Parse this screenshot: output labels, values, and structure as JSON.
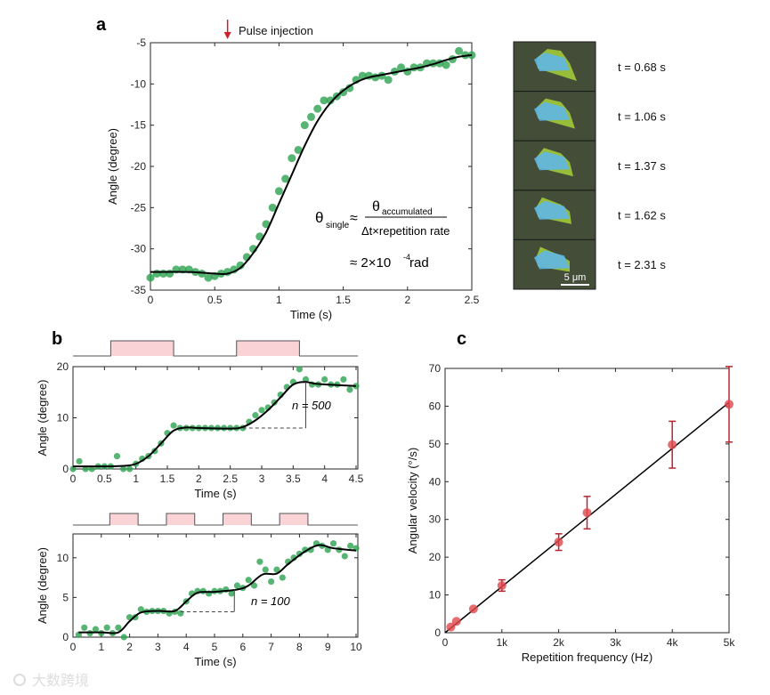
{
  "watermark": "大数跨境",
  "colors": {
    "green": "#2ca24f",
    "red": "#e0474c",
    "errorbar": "#b2282e",
    "pulse": "#f9d3d6"
  },
  "chart_data": [
    {
      "id": "a",
      "panel_label": "a",
      "type": "scatter",
      "xlabel": "Time (s)",
      "ylabel": "Angle (degree)",
      "xlim": [
        0,
        2.5
      ],
      "ylim": [
        -35,
        -5
      ],
      "xticks": [
        0,
        0.5,
        1,
        1.5,
        2,
        2.5
      ],
      "xtick_labels": [
        "0",
        "0.5",
        "1",
        "1.5",
        "2",
        "2.5"
      ],
      "yticks": [
        -35,
        -30,
        -25,
        -20,
        -15,
        -10,
        -5
      ],
      "ytick_labels": [
        "-35",
        "-30",
        "-25",
        "-20",
        "-15",
        "-10",
        "-5"
      ],
      "annotation_pulse": {
        "label": "Pulse injection",
        "t": 0.6
      },
      "formula": {
        "lhs": "θ",
        "lhs_sub": "single",
        "approx": "≈",
        "num": "θ",
        "num_sub": "accumulated",
        "den": "Δt×repetition rate",
        "result_pre": "≈ 2×10",
        "result_exp": "-4",
        "result_post": " rad"
      },
      "x": [
        0,
        0.05,
        0.1,
        0.15,
        0.2,
        0.25,
        0.3,
        0.35,
        0.4,
        0.45,
        0.5,
        0.55,
        0.6,
        0.65,
        0.7,
        0.75,
        0.8,
        0.85,
        0.9,
        0.95,
        1.0,
        1.05,
        1.1,
        1.15,
        1.2,
        1.25,
        1.3,
        1.35,
        1.4,
        1.45,
        1.5,
        1.55,
        1.6,
        1.65,
        1.7,
        1.75,
        1.8,
        1.85,
        1.9,
        1.95,
        2.0,
        2.05,
        2.1,
        2.15,
        2.2,
        2.25,
        2.3,
        2.35,
        2.4,
        2.45,
        2.5
      ],
      "y": [
        -33.5,
        -33,
        -33,
        -33,
        -32.5,
        -32.5,
        -32.5,
        -32.8,
        -33,
        -33.5,
        -33.3,
        -33,
        -32.8,
        -32.5,
        -32,
        -31,
        -30,
        -28.5,
        -27,
        -25,
        -23,
        -21.5,
        -19,
        -18,
        -15,
        -14,
        -13,
        -12,
        -12,
        -11.5,
        -11,
        -10.5,
        -9.5,
        -9,
        -9,
        -9.2,
        -9,
        -9.5,
        -8.5,
        -8,
        -8.5,
        -8,
        -8,
        -7.5,
        -7.5,
        -7.5,
        -7.7,
        -7,
        -6,
        -6.5,
        -6.5
      ],
      "fit": [
        [
          0,
          -32.8
        ],
        [
          0.3,
          -32.8
        ],
        [
          0.5,
          -33
        ],
        [
          0.6,
          -33
        ],
        [
          0.7,
          -32.3
        ],
        [
          0.8,
          -30.5
        ],
        [
          0.9,
          -28
        ],
        [
          1.0,
          -24.5
        ],
        [
          1.1,
          -21
        ],
        [
          1.2,
          -17.5
        ],
        [
          1.3,
          -14.5
        ],
        [
          1.4,
          -12.3
        ],
        [
          1.5,
          -10.8
        ],
        [
          1.6,
          -9.8
        ],
        [
          1.7,
          -9.2
        ],
        [
          1.8,
          -8.9
        ],
        [
          1.9,
          -8.6
        ],
        [
          2.0,
          -8.3
        ],
        [
          2.1,
          -8
        ],
        [
          2.2,
          -7.6
        ],
        [
          2.3,
          -7.1
        ],
        [
          2.4,
          -6.7
        ],
        [
          2.5,
          -6.5
        ]
      ],
      "frames": [
        {
          "label": "t = 0.68 s"
        },
        {
          "label": "t = 1.06 s"
        },
        {
          "label": "t = 1.37 s"
        },
        {
          "label": "t = 1.62 s"
        },
        {
          "label": "t = 2.31 s"
        }
      ],
      "scale_bar": "5 μm"
    },
    {
      "id": "b1",
      "panel_label": "b",
      "type": "scatter",
      "xlabel": "Time (s)",
      "ylabel": "Angle (degree)",
      "xlim": [
        0,
        4.5
      ],
      "ylim": [
        0,
        20
      ],
      "xticks": [
        0,
        0.5,
        1,
        1.5,
        2,
        2.5,
        3,
        3.5,
        4,
        4.5
      ],
      "xtick_labels": [
        "0",
        "0.5",
        "1",
        "1.5",
        "2",
        "2.5",
        "3",
        "3.5",
        "4",
        "4.5"
      ],
      "yticks": [
        0,
        10,
        20
      ],
      "ytick_labels": [
        "0",
        "10",
        "20"
      ],
      "pulses": [
        [
          0.6,
          1.6
        ],
        [
          2.6,
          3.6
        ]
      ],
      "x": [
        0,
        0.1,
        0.2,
        0.3,
        0.4,
        0.5,
        0.6,
        0.7,
        0.8,
        0.9,
        1.0,
        1.1,
        1.2,
        1.3,
        1.4,
        1.5,
        1.6,
        1.7,
        1.8,
        1.9,
        2.0,
        2.1,
        2.2,
        2.3,
        2.4,
        2.5,
        2.6,
        2.7,
        2.8,
        2.9,
        3.0,
        3.1,
        3.2,
        3.3,
        3.4,
        3.5,
        3.6,
        3.7,
        3.8,
        3.9,
        4.0,
        4.1,
        4.2,
        4.3,
        4.4,
        4.5
      ],
      "y": [
        0,
        1.5,
        0,
        0,
        0.5,
        0.5,
        0.5,
        2.5,
        0,
        0,
        1,
        2,
        2.5,
        3.5,
        5,
        7,
        8.5,
        8,
        8,
        8,
        8,
        8,
        8,
        8,
        8,
        8,
        8,
        8,
        9.2,
        10.5,
        11.5,
        12,
        13,
        14.5,
        16,
        17,
        19.5,
        17.5,
        16.5,
        16.5,
        17.5,
        16.5,
        16.5,
        17.5,
        15.5,
        16.2
      ],
      "fit": [
        [
          0,
          0.5
        ],
        [
          0.5,
          0.5
        ],
        [
          0.8,
          0.6
        ],
        [
          1.0,
          1
        ],
        [
          1.2,
          2.5
        ],
        [
          1.4,
          5
        ],
        [
          1.6,
          7.5
        ],
        [
          1.8,
          8.1
        ],
        [
          2.0,
          8
        ],
        [
          2.5,
          7.9
        ],
        [
          2.7,
          8.2
        ],
        [
          2.9,
          9.5
        ],
        [
          3.1,
          11.5
        ],
        [
          3.3,
          14
        ],
        [
          3.5,
          16.5
        ],
        [
          3.7,
          17
        ],
        [
          3.9,
          16.6
        ],
        [
          4.5,
          16.2
        ]
      ],
      "annotation": {
        "label": "n = 500",
        "dash_from": 2.7,
        "dash_to": 3.7,
        "low": 8,
        "high": 17
      }
    },
    {
      "id": "b2",
      "panel_label": "",
      "type": "scatter",
      "xlabel": "Time (s)",
      "ylabel": "Angle (degree)",
      "xlim": [
        0,
        10
      ],
      "ylim": [
        0,
        13
      ],
      "xticks": [
        0,
        1,
        2,
        3,
        4,
        5,
        6,
        7,
        8,
        9,
        10
      ],
      "xtick_labels": [
        "0",
        "1",
        "2",
        "3",
        "4",
        "5",
        "6",
        "7",
        "8",
        "9",
        "10"
      ],
      "yticks": [
        0,
        5,
        10
      ],
      "ytick_labels": [
        "0",
        "5",
        "10"
      ],
      "pulses": [
        [
          1.3,
          2.3
        ],
        [
          3.3,
          4.3
        ],
        [
          5.3,
          6.3
        ],
        [
          7.3,
          8.3
        ]
      ],
      "x": [
        0.2,
        0.4,
        0.6,
        0.8,
        1.0,
        1.2,
        1.4,
        1.6,
        1.8,
        2.0,
        2.2,
        2.4,
        2.6,
        2.8,
        3.0,
        3.2,
        3.4,
        3.6,
        3.8,
        4.0,
        4.2,
        4.4,
        4.6,
        4.8,
        5.0,
        5.2,
        5.4,
        5.6,
        5.8,
        6.0,
        6.2,
        6.4,
        6.6,
        6.8,
        7.0,
        7.2,
        7.4,
        7.6,
        7.8,
        8.0,
        8.2,
        8.4,
        8.6,
        8.8,
        9.0,
        9.2,
        9.4,
        9.6,
        9.8,
        10.0
      ],
      "y": [
        0.3,
        1.2,
        0.5,
        1,
        0.5,
        1.2,
        0.5,
        1.2,
        0,
        2.5,
        2.5,
        3.5,
        3.2,
        3.3,
        3.3,
        3.3,
        3,
        3.2,
        3,
        4.5,
        5.5,
        5.8,
        5.8,
        5.5,
        5.8,
        5.8,
        6,
        5.5,
        6.5,
        6.2,
        7.2,
        6.5,
        9.5,
        8.5,
        7,
        8.5,
        7.5,
        9.5,
        10,
        10.5,
        11,
        11,
        11.8,
        11.5,
        11,
        11.8,
        11,
        10.2,
        11.5,
        11.2
      ],
      "fit": [
        [
          0.2,
          0.6
        ],
        [
          1.0,
          0.6
        ],
        [
          1.6,
          0.6
        ],
        [
          2.0,
          2
        ],
        [
          2.4,
          3.1
        ],
        [
          3.0,
          3.3
        ],
        [
          3.6,
          3.3
        ],
        [
          4.0,
          4.5
        ],
        [
          4.4,
          5.6
        ],
        [
          5.0,
          5.7
        ],
        [
          5.8,
          6
        ],
        [
          6.2,
          6.5
        ],
        [
          6.7,
          7.9
        ],
        [
          7.2,
          8
        ],
        [
          7.6,
          9.2
        ],
        [
          8.2,
          10.8
        ],
        [
          8.7,
          11.6
        ],
        [
          9.2,
          11.2
        ],
        [
          10,
          10.9
        ]
      ],
      "annotation": {
        "label": "n = 100",
        "dash_from": 3.8,
        "dash_to": 5.7,
        "low": 3.2,
        "high": 6
      }
    },
    {
      "id": "c",
      "panel_label": "c",
      "type": "scatter",
      "xlabel": "Repetition frequency (Hz)",
      "ylabel": "Angular velocity (°/s)",
      "xlim": [
        0,
        5000
      ],
      "ylim": [
        0,
        70
      ],
      "xticks": [
        0,
        1000,
        2000,
        3000,
        4000,
        5000
      ],
      "xtick_labels": [
        "0",
        "1k",
        "2k",
        "3k",
        "4k",
        "5k"
      ],
      "yticks": [
        0,
        10,
        20,
        30,
        40,
        50,
        60,
        70
      ],
      "ytick_labels": [
        "0",
        "10",
        "20",
        "30",
        "40",
        "50",
        "60",
        "70"
      ],
      "x": [
        100,
        200,
        500,
        1000,
        2000,
        2500,
        4000,
        5000
      ],
      "y": [
        1.5,
        3,
        6.3,
        12.5,
        24,
        31.8,
        49.8,
        60.5
      ],
      "err": [
        0,
        0,
        0,
        1.5,
        2.2,
        4.3,
        6.2,
        10
      ],
      "fit": [
        [
          0,
          0
        ],
        [
          5000,
          61
        ]
      ]
    }
  ]
}
